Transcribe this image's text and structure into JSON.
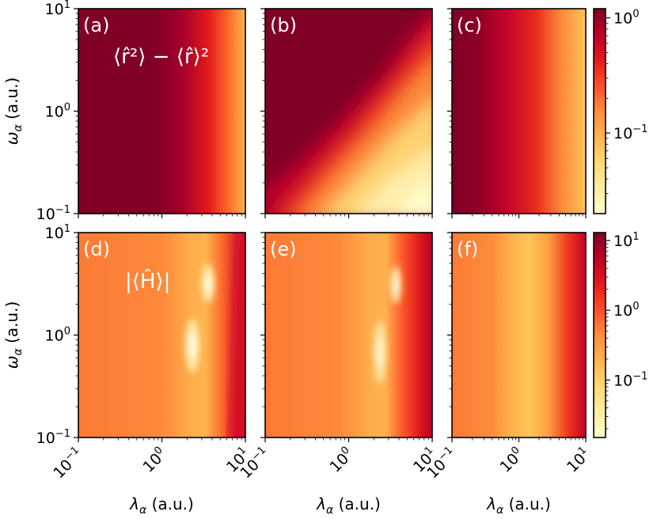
{
  "chart_data": [
    {
      "type": "heatmap",
      "panel": "(a)",
      "quantity_label": "⟨r̂²⟩ − ⟨r̂⟩²",
      "row": "variance",
      "x": {
        "label": "λ_α (a.u.)",
        "scale": "log",
        "range": [
          0.1,
          10
        ]
      },
      "y": {
        "label": "ω_α (a.u.)",
        "scale": "log",
        "range": [
          0.1,
          10
        ]
      },
      "description_values": {
        "low_lambda": 1.0,
        "high_lambda_high_omega": 0.15
      }
    },
    {
      "type": "heatmap",
      "panel": "(b)",
      "row": "variance",
      "x": {
        "label": "λ_α (a.u.)",
        "scale": "log",
        "range": [
          0.1,
          10
        ]
      },
      "y": {
        "scale": "log",
        "range": [
          0.1,
          10
        ]
      }
    },
    {
      "type": "heatmap",
      "panel": "(c)",
      "row": "variance",
      "x": {
        "label": "λ_α (a.u.)",
        "scale": "log",
        "range": [
          0.1,
          10
        ]
      },
      "y": {
        "scale": "log",
        "range": [
          0.1,
          10
        ]
      }
    },
    {
      "type": "heatmap",
      "panel": "(d)",
      "quantity_label": "|⟨Ĥ⟩|",
      "row": "energy",
      "x": {
        "label": "λ_α (a.u.)",
        "scale": "log",
        "range": [
          0.1,
          10
        ]
      },
      "y": {
        "label": "ω_α (a.u.)",
        "scale": "log",
        "range": [
          0.1,
          10
        ]
      }
    },
    {
      "type": "heatmap",
      "panel": "(e)",
      "row": "energy",
      "x": {
        "label": "λ_α (a.u.)",
        "scale": "log",
        "range": [
          0.1,
          10
        ]
      },
      "y": {
        "scale": "log",
        "range": [
          0.1,
          10
        ]
      }
    },
    {
      "type": "heatmap",
      "panel": "(f)",
      "row": "energy",
      "x": {
        "label": "λ_α (a.u.)",
        "scale": "log",
        "range": [
          0.1,
          10
        ]
      },
      "y": {
        "scale": "log",
        "range": [
          0.1,
          10
        ]
      }
    }
  ],
  "colorbars": [
    {
      "row": "variance",
      "scale": "log",
      "range": [
        0.02,
        1.2
      ],
      "ticks": [
        {
          "base": "10",
          "exp": "0",
          "value": 1
        },
        {
          "base": "10",
          "exp": "−1",
          "value": 0.1
        }
      ]
    },
    {
      "row": "energy",
      "scale": "log",
      "range": [
        0.015,
        13
      ],
      "ticks": [
        {
          "base": "10",
          "exp": "1",
          "value": 10
        },
        {
          "base": "10",
          "exp": "0",
          "value": 1
        },
        {
          "base": "10",
          "exp": "−1",
          "value": 0.1
        }
      ]
    }
  ],
  "colormap": "YlOrRd",
  "colormap_stops": [
    "#ffffcc",
    "#ffeda0",
    "#fed976",
    "#feb24c",
    "#fd8d3c",
    "#fc4e2a",
    "#e31a1c",
    "#bd0026",
    "#800026"
  ],
  "axes": {
    "ticks": [
      {
        "base": "10",
        "exp": "−1"
      },
      {
        "base": "10",
        "exp": "0"
      },
      {
        "base": "10",
        "exp": "1"
      }
    ],
    "xlabel_symbol": "λ",
    "ylabel_symbol": "ω",
    "subscript": "α",
    "unit": " (a.u.)"
  },
  "labels": {
    "a": "(a)",
    "b": "(b)",
    "c": "(c)",
    "d": "(d)",
    "e": "(e)",
    "f": "(f)",
    "variance": "⟨r̂²⟩ − ⟨r̂⟩²",
    "energy": "|⟨Ĥ⟩|"
  }
}
